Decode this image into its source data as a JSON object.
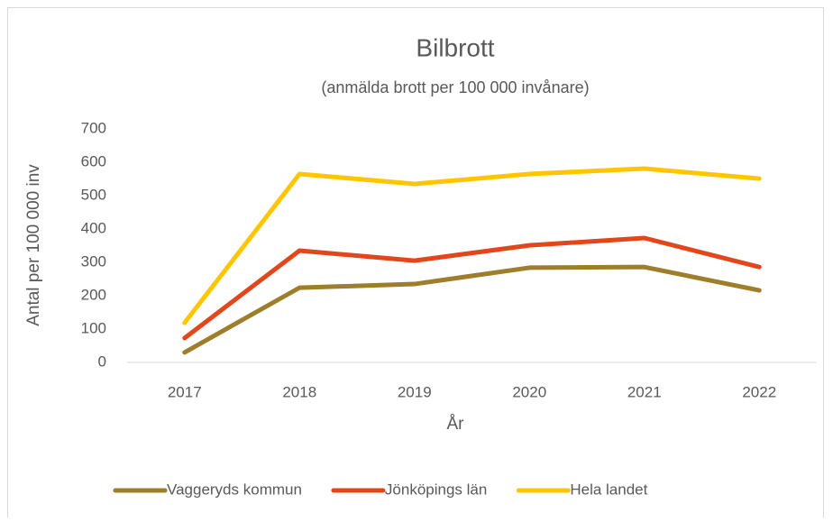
{
  "chart_data": {
    "type": "line",
    "title": "Bilbrott",
    "subtitle": "(anmälda brott per 100 000 invånare)",
    "x_label": "År",
    "y_label": "Antal per 100 000 inv",
    "categories": [
      "2017",
      "2018",
      "2019",
      "2020",
      "2021",
      "2022"
    ],
    "series": [
      {
        "name": "Vaggeryds kommun",
        "color": "#9e7d2b",
        "values": [
          30,
          224,
          235,
          284,
          286,
          216
        ]
      },
      {
        "name": "Jönköpings län",
        "color": "#e2461b",
        "values": [
          73,
          335,
          305,
          351,
          373,
          286
        ]
      },
      {
        "name": "Hela landet",
        "color": "#ffc600",
        "values": [
          119,
          565,
          535,
          565,
          581,
          551
        ]
      }
    ],
    "ylim": [
      0,
      700
    ],
    "yticks": [
      0,
      100,
      200,
      300,
      400,
      500,
      600,
      700
    ],
    "legend": "bottom"
  }
}
